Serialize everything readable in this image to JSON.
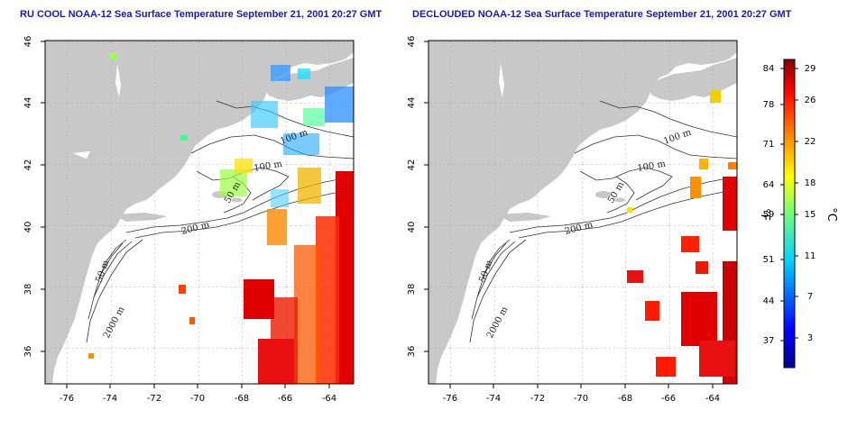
{
  "titles": {
    "left": "RU COOL NOAA-12 Sea Surface Temperature September 21, 2001 20:27 GMT",
    "right": "DECLOUDED NOAA-12 Sea Surface Temperature September 21, 2001 20:27 GMT"
  },
  "axes": {
    "lon_ticks": [
      "-76",
      "-74",
      "-72",
      "-70",
      "-68",
      "-66",
      "-64"
    ],
    "lat_ticks": [
      "46",
      "44",
      "42",
      "40",
      "38",
      "36"
    ]
  },
  "contour_labels": {
    "left": [
      "100 m",
      "100 m",
      "50 m",
      "200 m",
      "50 m",
      "2000 m"
    ],
    "right": [
      "100 m",
      "100 m",
      "50 m",
      "200 m",
      "50 m",
      "2000 m"
    ]
  },
  "colorbar": {
    "fahrenheit_ticks": [
      "84",
      "78",
      "71",
      "64",
      "59",
      "51",
      "44",
      "37"
    ],
    "celsius_ticks": [
      "29",
      "26",
      "22",
      "18",
      "15",
      "11",
      "7",
      "3"
    ],
    "unit_f": "°F",
    "unit_c": "°C"
  },
  "colors": {
    "land": "#c8c8c8",
    "ocean": "#ffffff",
    "title": "#1a1aa8",
    "warm_sst": "#e81010",
    "cool_sst": "#2a8cff"
  }
}
